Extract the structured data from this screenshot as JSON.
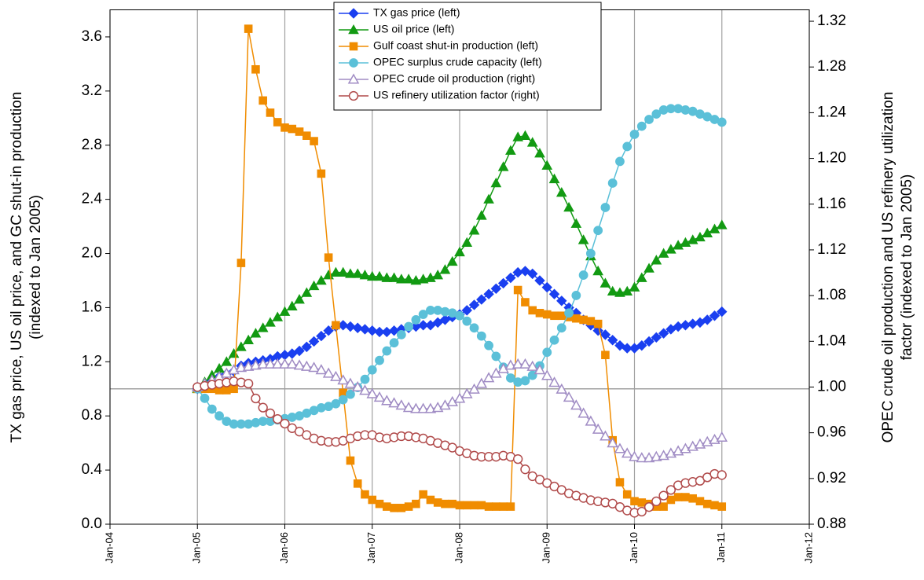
{
  "chart_data": {
    "type": "line",
    "y_label": [
      "TX gas price, US oil price, and GC shut-in production",
      "(indexed to Jan 2005)"
    ],
    "y2_label": [
      "OPEC crude oil production and US refinery utilization",
      "factor (indexed to Jan 2005)"
    ],
    "x": [
      "2005-01",
      "2005-02",
      "2005-03",
      "2005-04",
      "2005-05",
      "2005-06",
      "2005-07",
      "2005-08",
      "2005-09",
      "2005-10",
      "2005-11",
      "2005-12",
      "2006-01",
      "2006-02",
      "2006-03",
      "2006-04",
      "2006-05",
      "2006-06",
      "2006-07",
      "2006-08",
      "2006-09",
      "2006-10",
      "2006-11",
      "2006-12",
      "2007-01",
      "2007-02",
      "2007-03",
      "2007-04",
      "2007-05",
      "2007-06",
      "2007-07",
      "2007-08",
      "2007-09",
      "2007-10",
      "2007-11",
      "2007-12",
      "2008-01",
      "2008-02",
      "2008-03",
      "2008-04",
      "2008-05",
      "2008-06",
      "2008-07",
      "2008-08",
      "2008-09",
      "2008-10",
      "2008-11",
      "2008-12",
      "2009-01",
      "2009-02",
      "2009-03",
      "2009-04",
      "2009-05",
      "2009-06",
      "2009-07",
      "2009-08",
      "2009-09",
      "2009-10",
      "2009-11",
      "2009-12",
      "2010-01",
      "2010-02",
      "2010-03",
      "2010-04",
      "2010-05",
      "2010-06",
      "2010-07",
      "2010-08",
      "2010-09",
      "2010-10",
      "2010-11",
      "2010-12",
      "2011-01"
    ],
    "xlim": [
      "2004-01",
      "2012-01"
    ],
    "xticks": [
      {
        "value": "2004-01",
        "label": "Jan-04"
      },
      {
        "value": "2005-01",
        "label": "Jan-05"
      },
      {
        "value": "2006-01",
        "label": "Jan-06"
      },
      {
        "value": "2007-01",
        "label": "Jan-07"
      },
      {
        "value": "2008-01",
        "label": "Jan-08"
      },
      {
        "value": "2009-01",
        "label": "Jan-09"
      },
      {
        "value": "2010-01",
        "label": "Jan-10"
      },
      {
        "value": "2011-01",
        "label": "Jan-11"
      },
      {
        "value": "2012-01",
        "label": "Jan-12"
      }
    ],
    "ylim": [
      0,
      3.8
    ],
    "yticks": [
      {
        "value": 0,
        "label": "0.0"
      },
      0.4,
      0.8,
      1.2,
      1.6,
      {
        "value": 2,
        "label": "2.0"
      },
      2.4,
      2.8,
      3.2,
      3.6
    ],
    "y2lim": [
      0.88,
      1.33
    ],
    "y2ticks": [
      0.88,
      0.92,
      0.96,
      {
        "value": 1,
        "label": "1.00"
      },
      1.04,
      1.08,
      1.12,
      1.16,
      {
        "value": 1.2,
        "label": "1.20"
      },
      1.24,
      1.28,
      1.32
    ],
    "hline": 1,
    "grid": "x",
    "legend": "top center",
    "series": [
      {
        "name": "TX gas price (left)",
        "color": "#1a3ff0",
        "marker": "diamond",
        "marker_fill": "solid",
        "values": [
          1.0,
          1.03,
          1.06,
          1.09,
          1.11,
          1.13,
          1.17,
          1.19,
          1.2,
          1.21,
          1.22,
          1.24,
          1.25,
          1.26,
          1.28,
          1.31,
          1.35,
          1.39,
          1.43,
          1.46,
          1.47,
          1.46,
          1.45,
          1.44,
          1.43,
          1.42,
          1.42,
          1.43,
          1.44,
          1.45,
          1.46,
          1.47,
          1.47,
          1.49,
          1.51,
          1.53,
          1.55,
          1.58,
          1.62,
          1.66,
          1.7,
          1.74,
          1.78,
          1.82,
          1.86,
          1.87,
          1.85,
          1.8,
          1.75,
          1.7,
          1.65,
          1.6,
          1.56,
          1.51,
          1.47,
          1.43,
          1.4,
          1.36,
          1.32,
          1.3,
          1.3,
          1.32,
          1.35,
          1.38,
          1.41,
          1.44,
          1.46,
          1.47,
          1.48,
          1.49,
          1.51,
          1.54,
          1.57
        ]
      },
      {
        "name": "US oil price (left)",
        "color": "#129a12",
        "marker": "triangle",
        "marker_fill": "solid",
        "values": [
          1.0,
          1.05,
          1.1,
          1.15,
          1.2,
          1.26,
          1.31,
          1.36,
          1.41,
          1.45,
          1.49,
          1.53,
          1.57,
          1.61,
          1.66,
          1.71,
          1.76,
          1.8,
          1.84,
          1.86,
          1.86,
          1.85,
          1.85,
          1.84,
          1.83,
          1.83,
          1.82,
          1.82,
          1.81,
          1.81,
          1.8,
          1.81,
          1.82,
          1.84,
          1.88,
          1.94,
          2.01,
          2.08,
          2.17,
          2.28,
          2.4,
          2.52,
          2.64,
          2.76,
          2.86,
          2.87,
          2.82,
          2.74,
          2.65,
          2.55,
          2.45,
          2.34,
          2.22,
          2.1,
          1.98,
          1.87,
          1.78,
          1.72,
          1.71,
          1.72,
          1.75,
          1.82,
          1.89,
          1.95,
          2.0,
          2.03,
          2.06,
          2.08,
          2.1,
          2.12,
          2.15,
          2.18,
          2.21
        ]
      },
      {
        "name": "Gulf coast shut-in production (left)",
        "color": "#f08c00",
        "marker": "square",
        "marker_fill": "solid",
        "values": [
          1.0,
          1.0,
          1.0,
          0.99,
          0.99,
          1.0,
          1.93,
          3.66,
          3.36,
          3.13,
          3.04,
          2.97,
          2.93,
          2.92,
          2.9,
          2.87,
          2.83,
          2.59,
          1.97,
          1.47,
          0.97,
          0.47,
          0.3,
          0.22,
          0.18,
          0.15,
          0.13,
          0.12,
          0.12,
          0.13,
          0.15,
          0.22,
          0.18,
          0.16,
          0.15,
          0.15,
          0.14,
          0.14,
          0.14,
          0.14,
          0.13,
          0.13,
          0.13,
          0.13,
          1.73,
          1.64,
          1.58,
          1.56,
          1.55,
          1.54,
          1.54,
          1.53,
          1.52,
          1.51,
          1.5,
          1.48,
          1.25,
          0.62,
          0.31,
          0.22,
          0.17,
          0.16,
          0.15,
          0.13,
          0.13,
          0.18,
          0.2,
          0.2,
          0.19,
          0.17,
          0.15,
          0.14,
          0.13
        ]
      },
      {
        "name": "OPEC surplus crude capacity (left)",
        "color": "#5bc0d8",
        "marker": "circle",
        "marker_fill": "solid",
        "values": [
          1.0,
          0.93,
          0.85,
          0.8,
          0.76,
          0.74,
          0.74,
          0.74,
          0.75,
          0.76,
          0.76,
          0.77,
          0.78,
          0.79,
          0.8,
          0.82,
          0.84,
          0.86,
          0.87,
          0.89,
          0.92,
          0.96,
          1.01,
          1.07,
          1.14,
          1.21,
          1.28,
          1.34,
          1.4,
          1.46,
          1.51,
          1.55,
          1.58,
          1.58,
          1.57,
          1.56,
          1.54,
          1.5,
          1.45,
          1.39,
          1.32,
          1.24,
          1.16,
          1.08,
          1.05,
          1.06,
          1.1,
          1.17,
          1.27,
          1.36,
          1.45,
          1.56,
          1.69,
          1.84,
          2.0,
          2.17,
          2.34,
          2.52,
          2.68,
          2.79,
          2.88,
          2.94,
          2.99,
          3.03,
          3.06,
          3.07,
          3.07,
          3.06,
          3.05,
          3.03,
          3.01,
          2.99,
          2.97
        ]
      },
      {
        "name": "OPEC crude oil production (right)",
        "color": "#a08cc4",
        "marker": "triangle",
        "marker_fill": "open",
        "axis": "y2",
        "values": [
          1.0,
          1.003,
          1.006,
          1.009,
          1.012,
          1.015,
          1.017,
          1.018,
          1.019,
          1.02,
          1.02,
          1.02,
          1.02,
          1.02,
          1.019,
          1.018,
          1.017,
          1.015,
          1.012,
          1.009,
          1.006,
          1.003,
          1.0,
          0.997,
          0.994,
          0.991,
          0.988,
          0.986,
          0.984,
          0.982,
          0.981,
          0.981,
          0.981,
          0.982,
          0.984,
          0.987,
          0.99,
          0.994,
          0.998,
          1.003,
          1.008,
          1.012,
          1.016,
          1.019,
          1.02,
          1.02,
          1.018,
          1.015,
          1.01,
          1.004,
          0.998,
          0.991,
          0.984,
          0.977,
          0.97,
          0.963,
          0.957,
          0.951,
          0.946,
          0.942,
          0.939,
          0.938,
          0.938,
          0.939,
          0.94,
          0.942,
          0.944,
          0.946,
          0.948,
          0.95,
          0.952,
          0.954,
          0.956
        ]
      },
      {
        "name": "US refinery utilization factor (right)",
        "color": "#b04a4a",
        "marker": "circle",
        "marker_fill": "open",
        "axis": "y2",
        "values": [
          1.0,
          1.001,
          1.002,
          1.003,
          1.004,
          1.005,
          1.004,
          1.003,
          0.99,
          0.982,
          0.977,
          0.972,
          0.968,
          0.964,
          0.961,
          0.958,
          0.955,
          0.953,
          0.952,
          0.952,
          0.953,
          0.955,
          0.957,
          0.958,
          0.958,
          0.956,
          0.955,
          0.956,
          0.957,
          0.957,
          0.956,
          0.955,
          0.953,
          0.951,
          0.949,
          0.947,
          0.944,
          0.942,
          0.94,
          0.939,
          0.939,
          0.939,
          0.94,
          0.939,
          0.937,
          0.928,
          0.922,
          0.919,
          0.916,
          0.913,
          0.91,
          0.907,
          0.905,
          0.903,
          0.901,
          0.9,
          0.899,
          0.898,
          0.895,
          0.892,
          0.89,
          0.891,
          0.895,
          0.9,
          0.905,
          0.91,
          0.914,
          0.916,
          0.917,
          0.918,
          0.921,
          0.924,
          0.923
        ]
      }
    ]
  }
}
